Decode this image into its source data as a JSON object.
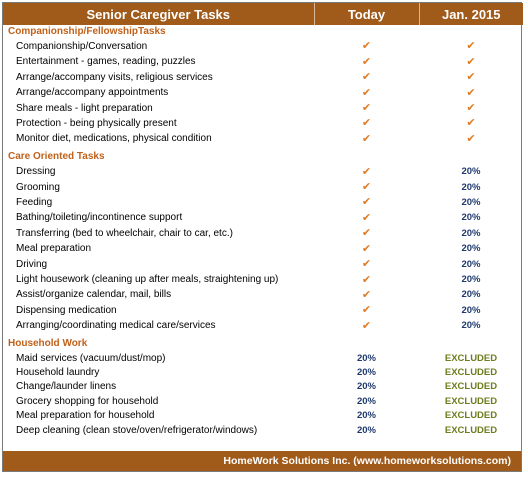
{
  "header": {
    "col_task": "Senior Caregiver Tasks",
    "col_today": "Today",
    "col_future": "Jan. 2015"
  },
  "sections": [
    {
      "title": "Companionship/FellowshipTasks",
      "rows": [
        {
          "task": "Companionship/Conversation",
          "today": "✔",
          "future": "✔"
        },
        {
          "task": "Entertainment - games, reading, puzzles",
          "today": "✔",
          "future": "✔"
        },
        {
          "task": "Arrange/accompany visits, religious services",
          "today": "✔",
          "future": "✔"
        },
        {
          "task": "Arrange/accompany appointments",
          "today": "✔",
          "future": "✔"
        },
        {
          "task": "Share meals - light preparation",
          "today": "✔",
          "future": "✔"
        },
        {
          "task": "Protection - being physically present",
          "today": "✔",
          "future": "✔"
        },
        {
          "task": "Monitor diet, medications, physical condition",
          "today": "✔",
          "future": "✔"
        }
      ]
    },
    {
      "title": "Care Oriented Tasks",
      "rows": [
        {
          "task": "Dressing",
          "today": "✔",
          "future": "20%"
        },
        {
          "task": "Grooming",
          "today": "✔",
          "future": "20%"
        },
        {
          "task": "Feeding",
          "today": "✔",
          "future": "20%"
        },
        {
          "task": "Bathing/toileting/incontinence support",
          "today": "✔",
          "future": "20%"
        },
        {
          "task": "Transferring (bed to wheelchair, chair to car, etc.)",
          "today": "✔",
          "future": "20%"
        },
        {
          "task": "Meal preparation",
          "today": "✔",
          "future": "20%"
        },
        {
          "task": "Driving",
          "today": "✔",
          "future": "20%"
        },
        {
          "task": "Light housework (cleaning up after meals, straightening up)",
          "today": "✔",
          "future": "20%"
        },
        {
          "task": "Assist/organize calendar, mail, bills",
          "today": "✔",
          "future": "20%"
        },
        {
          "task": "Dispensing medication",
          "today": "✔",
          "future": "20%"
        },
        {
          "task": "Arranging/coordinating medical care/services",
          "today": "✔",
          "future": "20%"
        }
      ]
    },
    {
      "title": "Household Work",
      "rows": [
        {
          "task": "Maid services (vacuum/dust/mop)",
          "today": "20%",
          "future": "EXCLUDED"
        },
        {
          "task": "Household laundry",
          "today": "20%",
          "future": "EXCLUDED"
        },
        {
          "task": "Change/launder linens",
          "today": "20%",
          "future": "EXCLUDED"
        },
        {
          "task": "Grocery shopping for household",
          "today": "20%",
          "future": "EXCLUDED"
        },
        {
          "task": "Meal preparation for household",
          "today": "20%",
          "future": "EXCLUDED"
        },
        {
          "task": "Deep cleaning (clean stove/oven/refrigerator/windows)",
          "today": "20%",
          "future": "EXCLUDED"
        }
      ]
    }
  ],
  "footer": "HomeWork Solutions Inc. (www.homeworksolutions.com)",
  "colors": {
    "header_bg": "#a05a1a",
    "section_title": "#c0611a",
    "check": "#e07b25",
    "percent": "#1f3a6e",
    "excluded": "#6e7d1e"
  }
}
